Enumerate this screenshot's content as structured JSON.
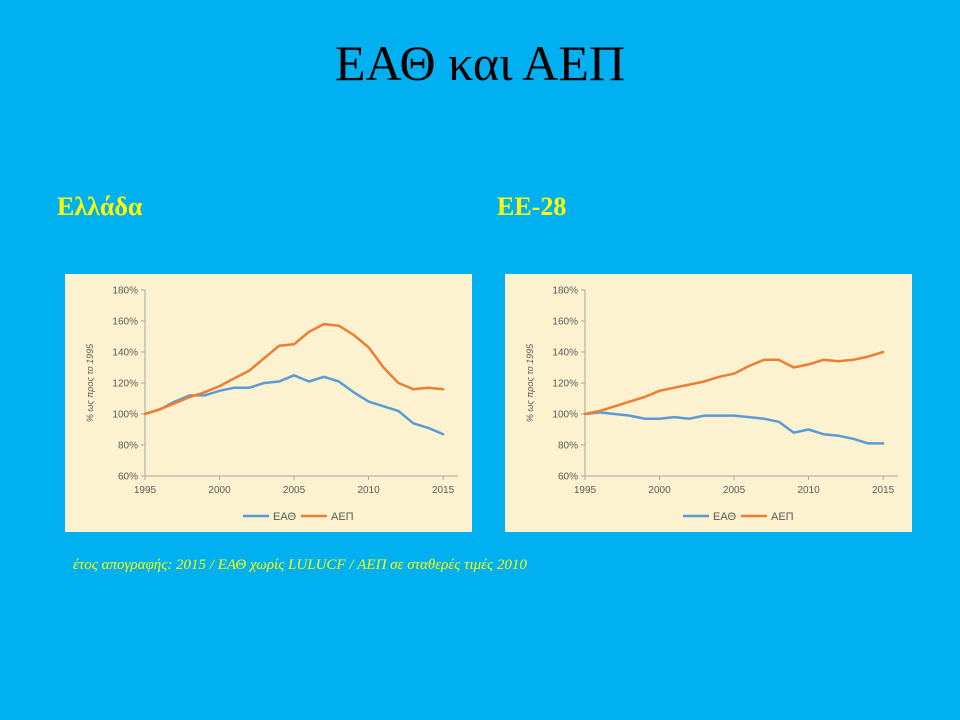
{
  "slide": {
    "title": "ΕΑΘ και ΑΕΠ",
    "footnote": "έτος απογραφής: 2015 / ΕΑΘ χωρίς LULUCF / ΑΕΠ σε σταθερές τιμές 2010"
  },
  "colors": {
    "background": "#00b0f0",
    "label": "#ffff00",
    "panel": "#fcf2cf",
    "series_eath": "#5b9bd5",
    "series_aep": "#ed7d31"
  },
  "chart_data": [
    {
      "type": "line",
      "title": "Ελλάδα",
      "ylabel": "% ως προς το 1995",
      "xlim": [
        1995,
        2016
      ],
      "ylim": [
        60,
        180
      ],
      "x_ticks": [
        "1995",
        "2000",
        "2005",
        "2010",
        "2015"
      ],
      "y_ticks": [
        "60%",
        "80%",
        "100%",
        "120%",
        "140%",
        "160%",
        "180%"
      ],
      "legend_position": "bottom",
      "grid": false,
      "x": [
        1995,
        1996,
        1997,
        1998,
        1999,
        2000,
        2001,
        2002,
        2003,
        2004,
        2005,
        2006,
        2007,
        2008,
        2009,
        2010,
        2011,
        2012,
        2013,
        2014,
        2015
      ],
      "series": [
        {
          "name": "ΕΑΘ",
          "values": [
            100,
            103,
            108,
            112,
            112,
            115,
            117,
            117,
            120,
            121,
            125,
            121,
            124,
            121,
            114,
            108,
            105,
            102,
            94,
            91,
            87
          ]
        },
        {
          "name": "ΑΕΠ",
          "values": [
            100,
            103,
            107,
            111,
            114,
            118,
            123,
            128,
            136,
            144,
            145,
            153,
            158,
            157,
            151,
            143,
            130,
            120,
            116,
            117,
            116
          ]
        }
      ]
    },
    {
      "type": "line",
      "title": "ΕΕ-28",
      "ylabel": "% ως προς το 1995",
      "xlim": [
        1995,
        2016
      ],
      "ylim": [
        60,
        180
      ],
      "x_ticks": [
        "1995",
        "2000",
        "2005",
        "2010",
        "2015"
      ],
      "y_ticks": [
        "60%",
        "80%",
        "100%",
        "120%",
        "140%",
        "160%",
        "180%"
      ],
      "legend_position": "bottom",
      "grid": false,
      "x": [
        1995,
        1996,
        1997,
        1998,
        1999,
        2000,
        2001,
        2002,
        2003,
        2004,
        2005,
        2006,
        2007,
        2008,
        2009,
        2010,
        2011,
        2012,
        2013,
        2014,
        2015
      ],
      "series": [
        {
          "name": "ΕΑΘ",
          "values": [
            100,
            101,
            100,
            99,
            97,
            97,
            98,
            97,
            99,
            99,
            99,
            98,
            97,
            95,
            88,
            90,
            87,
            86,
            84,
            81,
            81
          ]
        },
        {
          "name": "ΑΕΠ",
          "values": [
            100,
            102,
            105,
            108,
            111,
            115,
            117,
            119,
            121,
            124,
            126,
            131,
            135,
            135,
            130,
            132,
            135,
            134,
            135,
            137,
            140
          ]
        }
      ]
    }
  ]
}
